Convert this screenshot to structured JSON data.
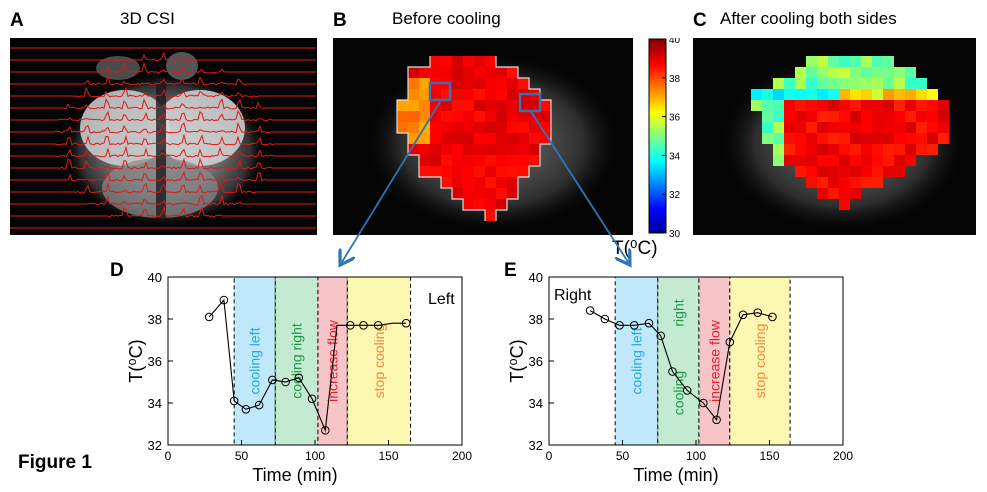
{
  "panels": {
    "A": {
      "label": "A",
      "title": "3D CSI"
    },
    "B": {
      "label": "B",
      "title": "Before cooling"
    },
    "C": {
      "label": "C",
      "title": "After cooling both sides"
    },
    "D": {
      "label": "D",
      "side": "Left"
    },
    "E": {
      "label": "E",
      "side": "Right"
    }
  },
  "colorbar": {
    "ticks": [
      "40",
      "38",
      "36",
      "34",
      "32",
      "30"
    ],
    "unit": "T(⁰C)"
  },
  "figure_label": "Figure 1",
  "chart_data": [
    {
      "type": "line",
      "panel": "D",
      "annotation": "Left",
      "xlabel": "Time (min)",
      "ylabel": "T(⁰C)",
      "xlim": [
        0,
        200
      ],
      "ylim": [
        32,
        40
      ],
      "xticks": [
        "0",
        "50",
        "100",
        "150",
        "200"
      ],
      "yticks": [
        "32",
        "34",
        "36",
        "38",
        "40"
      ],
      "x": [
        28,
        38,
        45,
        53,
        62,
        71,
        80,
        89,
        98,
        107,
        115,
        124,
        133,
        143,
        153,
        162
      ],
      "y": [
        38.1,
        38.9,
        34.1,
        33.7,
        33.9,
        35.1,
        35.0,
        35.2,
        34.2,
        32.7,
        37.7,
        37.7,
        37.7,
        37.7,
        37.8,
        37.8
      ],
      "markers": [
        true,
        true,
        true,
        true,
        true,
        true,
        true,
        true,
        true,
        true,
        false,
        true,
        true,
        true,
        false,
        true
      ],
      "phases": [
        {
          "label": "cooling left",
          "x0": 45,
          "x1": 73,
          "color": "#bfe8fa",
          "text_color": "#28a8e0"
        },
        {
          "label": "cooling right",
          "x0": 73,
          "x1": 102,
          "color": "#c4ead2",
          "text_color": "#1e9a4a"
        },
        {
          "label": "increase flow",
          "x0": 102,
          "x1": 122,
          "color": "#f7c5c8",
          "text_color": "#e02030"
        },
        {
          "label": "stop cooling",
          "x0": 122,
          "x1": 165,
          "color": "#fcf7b0",
          "text_color": "#f08a40"
        }
      ]
    },
    {
      "type": "line",
      "panel": "E",
      "annotation": "Right",
      "xlabel": "Time (min)",
      "ylabel": "T(⁰C)",
      "xlim": [
        0,
        200
      ],
      "ylim": [
        32,
        40
      ],
      "xticks": [
        "0",
        "50",
        "100",
        "150",
        "200"
      ],
      "yticks": [
        "32",
        "34",
        "36",
        "38",
        "40"
      ],
      "x": [
        28,
        38,
        48,
        58,
        68,
        76,
        84,
        94,
        105,
        114,
        123,
        132,
        142,
        152
      ],
      "y": [
        38.4,
        38.0,
        37.7,
        37.7,
        37.8,
        37.2,
        35.5,
        34.6,
        34.0,
        33.2,
        36.9,
        38.2,
        38.3,
        38.1
      ],
      "markers": [
        true,
        true,
        true,
        true,
        true,
        true,
        true,
        true,
        true,
        true,
        true,
        true,
        true,
        true
      ],
      "phases": [
        {
          "label": "cooling left",
          "x0": 45,
          "x1": 74,
          "color": "#bfe8fa",
          "text_color": "#28a8e0"
        },
        {
          "label": "cooling",
          "label2": "right",
          "x0": 74,
          "x1": 102,
          "color": "#c4ead2",
          "text_color": "#1e9a4a"
        },
        {
          "label": "increase flow",
          "x0": 102,
          "x1": 123,
          "color": "#f7c5c8",
          "text_color": "#e02030"
        },
        {
          "label": "stop cooling",
          "x0": 123,
          "x1": 164,
          "color": "#fcf7b0",
          "text_color": "#f08a40"
        }
      ]
    }
  ]
}
